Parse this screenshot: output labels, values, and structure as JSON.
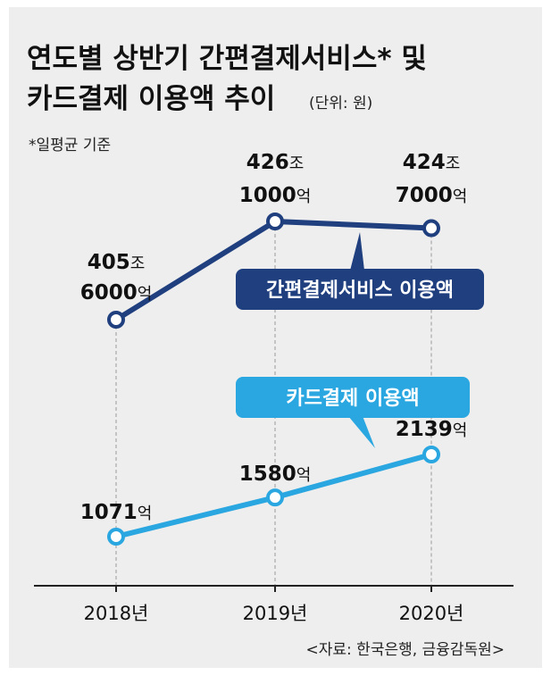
{
  "chart_data": {
    "type": "line",
    "title_line1": "연도별 상반기 간편결제서비스* 및",
    "title_line2": "카드결제 이용액 추이",
    "unit": "(단위: 원)",
    "footnote": "*일평균 기준",
    "source": "<자료: 한국은행, 금융감독원>",
    "categories": [
      "2018년",
      "2019년",
      "2020년"
    ],
    "series": [
      {
        "name": "간편결제서비스 이용액",
        "values": [
          405600000000000,
          426100000000000,
          424700000000000
        ],
        "labels": [
          {
            "line1": "405조",
            "line2": "6000억"
          },
          {
            "line1": "426조",
            "line2": "1000억"
          },
          {
            "line1": "424조",
            "line2": "7000억"
          }
        ],
        "color": "#1f3f7f"
      },
      {
        "name": "카드결제 이용액",
        "values": [
          107100000000,
          158000000000,
          213900000000
        ],
        "labels": [
          {
            "line1": "1071억"
          },
          {
            "line1": "1580억"
          },
          {
            "line1": "2139억"
          }
        ],
        "color": "#2aa7e0"
      }
    ],
    "grid": false,
    "legend": "callout labels near lines"
  },
  "colors": {
    "panel": "#eeeeee",
    "dark_series": "#1f3f7f",
    "light_series": "#2aa7e0",
    "axis": "#222222",
    "guide": "#9a9a9a"
  }
}
